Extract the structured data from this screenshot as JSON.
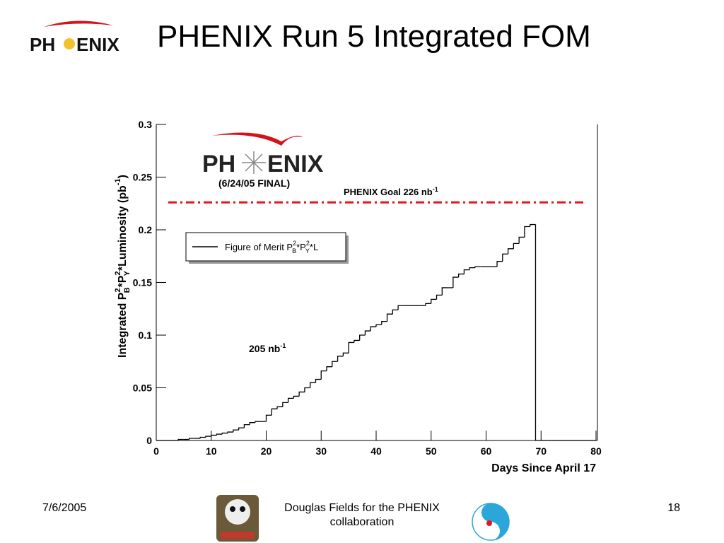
{
  "slide": {
    "title": "PHENIX Run 5 Integrated FOM",
    "logo": [
      "PH",
      "ENIX"
    ],
    "footer_date": "7/6/2005",
    "footer_author": [
      "Douglas Fields for the PHENIX",
      "collaboration"
    ],
    "page_number": "18"
  },
  "chart_data": {
    "type": "histogram",
    "logo": [
      "PH",
      "ENIX"
    ],
    "logo_note": "(6/24/05 FINAL)",
    "x_label": "Days Since April 17",
    "y_label": [
      "Integrated P",
      "2",
      "B",
      "*P",
      "2",
      "Y",
      "*Luminosity (pb",
      "-1",
      ")"
    ],
    "legend_label": [
      "Figure of Merit P",
      "2",
      "B",
      "*P",
      "2",
      "Y",
      "*L"
    ],
    "annotation": [
      "205 nb",
      "-1"
    ],
    "goal_line": {
      "value": 0.226,
      "label": [
        "PHENIX Goal 226 nb",
        "-1"
      ],
      "color": "#e8141c"
    },
    "color": "#000000",
    "bins": [
      0,
      1,
      2,
      3,
      4,
      5,
      6,
      7,
      8,
      9,
      10,
      11,
      12,
      13,
      14,
      15,
      16,
      17,
      18,
      19,
      20,
      21,
      22,
      23,
      24,
      25,
      26,
      27,
      28,
      29,
      30,
      31,
      32,
      33,
      34,
      35,
      36,
      37,
      38,
      39,
      40,
      41,
      42,
      43,
      44,
      45,
      46,
      47,
      48,
      49,
      50,
      51,
      52,
      53,
      54,
      55,
      56,
      57,
      58,
      59,
      60,
      61,
      62,
      63,
      64,
      65,
      66,
      67,
      68,
      69,
      70,
      71,
      72,
      73,
      74,
      75,
      76,
      77,
      78,
      79,
      80
    ],
    "values": [
      0,
      0,
      0,
      0,
      0.001,
      0.001,
      0.002,
      0.002,
      0.003,
      0.004,
      0.005,
      0.006,
      0.007,
      0.008,
      0.01,
      0.012,
      0.015,
      0.017,
      0.018,
      0.018,
      0.024,
      0.03,
      0.032,
      0.036,
      0.04,
      0.042,
      0.046,
      0.05,
      0.055,
      0.058,
      0.066,
      0.07,
      0.075,
      0.08,
      0.083,
      0.093,
      0.095,
      0.1,
      0.104,
      0.108,
      0.11,
      0.113,
      0.12,
      0.124,
      0.128,
      0.128,
      0.128,
      0.128,
      0.128,
      0.13,
      0.134,
      0.138,
      0.145,
      0.145,
      0.155,
      0.158,
      0.162,
      0.164,
      0.165,
      0.165,
      0.165,
      0.165,
      0.17,
      0.177,
      0.182,
      0.187,
      0.193,
      0.203,
      0.205,
      0,
      0,
      0,
      0,
      0,
      0,
      0,
      0,
      0,
      0,
      0
    ],
    "xlim": [
      0,
      80
    ],
    "xticks": [
      0,
      10,
      20,
      30,
      40,
      50,
      60,
      70,
      80
    ],
    "ylim": [
      0,
      0.3
    ],
    "yticks": [
      0,
      0.05,
      0.1,
      0.15,
      0.2,
      0.25,
      0.3
    ]
  }
}
